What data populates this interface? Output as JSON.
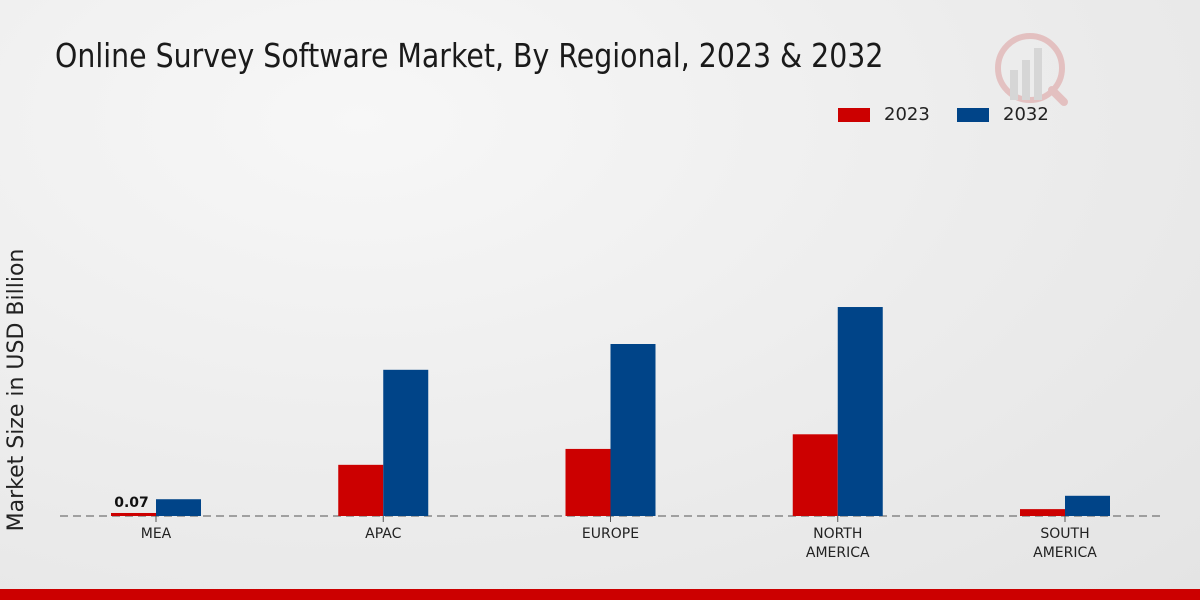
{
  "chart_data": {
    "type": "bar",
    "title": "Online Survey Software Market, By Regional, 2023 & 2032",
    "xlabel": "",
    "ylabel": "Market Size in USD Billion",
    "categories": [
      [
        "MEA"
      ],
      [
        "APAC"
      ],
      [
        "EUROPE"
      ],
      [
        "NORTH",
        "AMERICA"
      ],
      [
        "SOUTH",
        "AMERICA"
      ]
    ],
    "series": [
      {
        "name": "2023",
        "color": "#cc0000",
        "values": [
          0.07,
          1.19,
          1.56,
          1.9,
          0.16
        ]
      },
      {
        "name": "2032",
        "color": "#004488",
        "values": [
          0.39,
          3.4,
          4.0,
          4.86,
          0.47
        ]
      }
    ],
    "data_labels": [
      {
        "series": 0,
        "index": 0,
        "text": "0.07"
      }
    ],
    "ylim": [
      0,
      5.5
    ],
    "legend": "top-right",
    "grid": false
  }
}
